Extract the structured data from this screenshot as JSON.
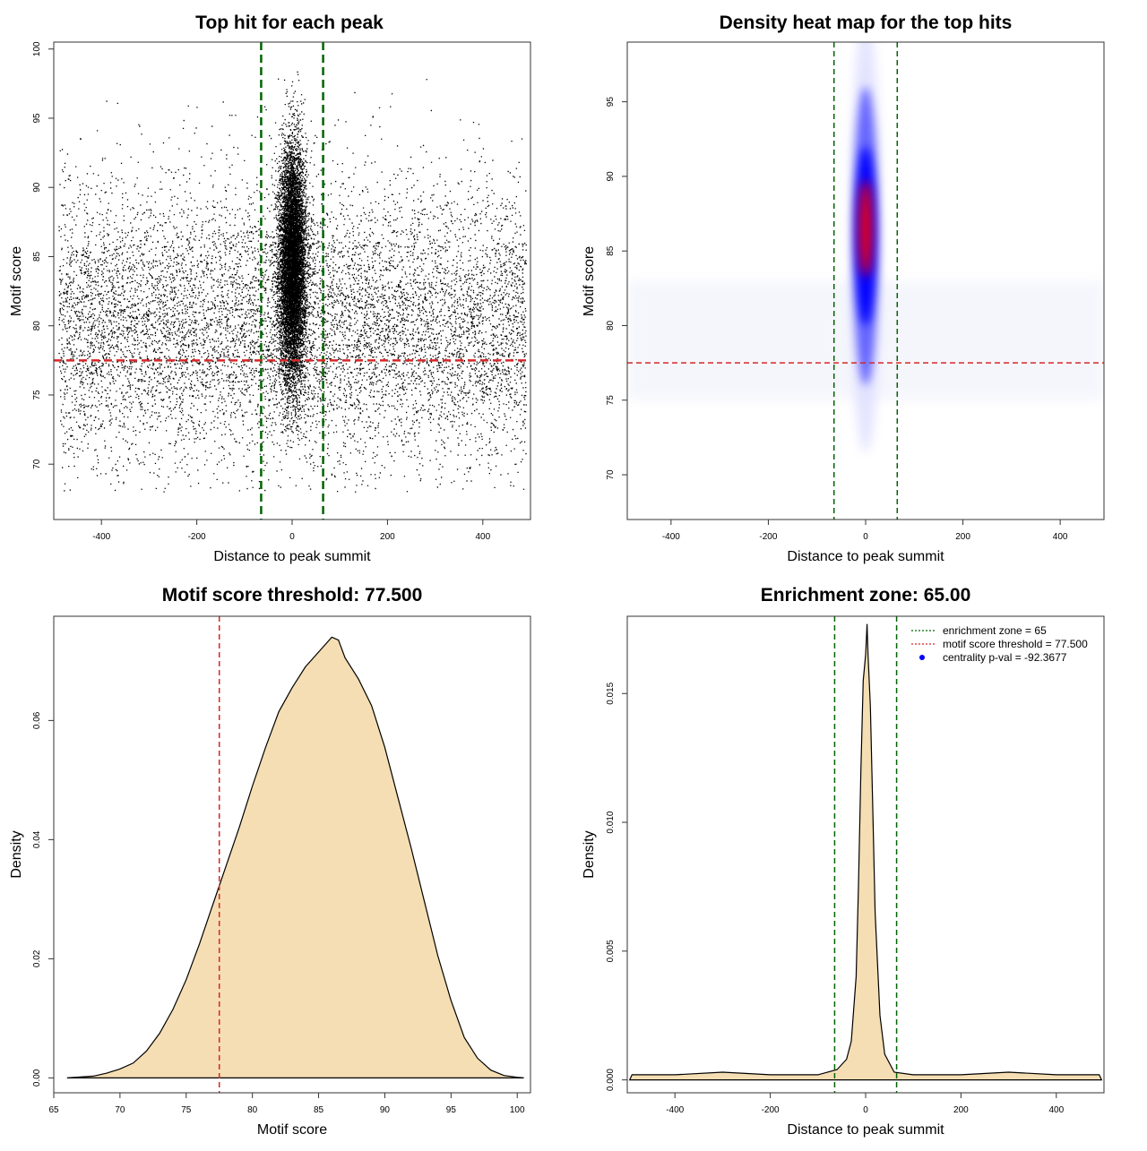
{
  "chart_data": [
    {
      "id": "scatter",
      "type": "scatter",
      "title": "Top hit for each peak",
      "xlabel": "Distance to peak summit",
      "ylabel": "Motif score",
      "xlim": [
        -500,
        500
      ],
      "ylim": [
        66,
        100.5
      ],
      "xticks": [
        -400,
        -200,
        0,
        200,
        400
      ],
      "yticks": [
        70,
        75,
        80,
        85,
        90,
        95,
        100
      ],
      "vlines": [
        -65,
        65
      ],
      "hline": 77.5,
      "point_color": "#000000",
      "vline_color": "#006400",
      "hline_color": "#d62728",
      "central_cluster": {
        "x_center": 0,
        "x_spread": 14,
        "y_center": 84.5,
        "y_min": 71,
        "y_max": 98.5
      },
      "background": {
        "x_range": [
          -490,
          490
        ],
        "y_center": 80,
        "y_min": 68,
        "y_max": 98
      }
    },
    {
      "id": "heatmap",
      "type": "heatmap",
      "title": "Density heat map for the top hits",
      "xlabel": "Distance to peak summit",
      "ylabel": "Motif score",
      "xlim": [
        -490,
        490
      ],
      "ylim": [
        67,
        99
      ],
      "xticks": [
        -400,
        -200,
        0,
        200,
        400
      ],
      "yticks": [
        70,
        75,
        80,
        85,
        90,
        95
      ],
      "vlines": [
        -65,
        65
      ],
      "hline": 77.5,
      "hotspot": {
        "x": 0,
        "y": 86.5
      },
      "colors": {
        "low": "#ffffff",
        "mid": "#0000ff",
        "high": "#ff0000"
      },
      "vline_color": "#006400",
      "hline_color": "#d62728"
    },
    {
      "id": "score-density",
      "type": "area",
      "title": "Motif score threshold: 77.500",
      "xlabel": "Motif score",
      "ylabel": "Density",
      "xlim": [
        65,
        101
      ],
      "ylim": [
        -0.0025,
        0.0775
      ],
      "xticks": [
        65,
        70,
        75,
        80,
        85,
        90,
        95,
        100
      ],
      "yticks": [
        0.0,
        0.02,
        0.04,
        0.06
      ],
      "ytick_labels": [
        "0.00",
        "0.02",
        "0.04",
        "0.06"
      ],
      "vline": 77.5,
      "x": [
        66,
        68,
        69,
        70,
        71,
        72,
        73,
        74,
        75,
        76,
        77,
        78,
        79,
        80,
        81,
        82,
        83,
        84,
        85,
        86,
        86.5,
        87,
        88,
        89,
        90,
        91,
        92,
        93,
        94,
        95,
        96,
        97,
        98,
        99,
        100,
        100.5
      ],
      "y": [
        0.0,
        0.0003,
        0.0008,
        0.0015,
        0.0025,
        0.0045,
        0.0075,
        0.0115,
        0.0165,
        0.0225,
        0.029,
        0.0355,
        0.042,
        0.049,
        0.0555,
        0.0615,
        0.0655,
        0.069,
        0.0715,
        0.074,
        0.0735,
        0.0705,
        0.067,
        0.0625,
        0.0555,
        0.047,
        0.0385,
        0.0295,
        0.0205,
        0.013,
        0.0068,
        0.0033,
        0.0013,
        0.0004,
        0.0001,
        0.0
      ],
      "fill": "#f5deb3",
      "vline_color": "#d62728"
    },
    {
      "id": "distance-density",
      "type": "area",
      "title": "Enrichment zone: 65.00",
      "xlabel": "Distance to peak summit",
      "ylabel": "Density",
      "xlim": [
        -500,
        500
      ],
      "ylim": [
        -0.0005,
        0.018
      ],
      "xticks": [
        -400,
        -200,
        0,
        200,
        400
      ],
      "yticks": [
        0.0,
        0.005,
        0.01,
        0.015
      ],
      "ytick_labels": [
        "0.000",
        "0.005",
        "0.010",
        "0.015"
      ],
      "vlines": [
        -65,
        65
      ],
      "x": [
        -495,
        -490,
        -400,
        -300,
        -200,
        -100,
        -60,
        -40,
        -30,
        -20,
        -15,
        -10,
        -5,
        0,
        3,
        5,
        10,
        15,
        20,
        30,
        40,
        60,
        100,
        200,
        300,
        400,
        490,
        495
      ],
      "y": [
        0.0,
        0.0002,
        0.0002,
        0.0003,
        0.0002,
        0.0002,
        0.0004,
        0.0008,
        0.0015,
        0.004,
        0.0075,
        0.012,
        0.0155,
        0.0165,
        0.0177,
        0.0165,
        0.0145,
        0.0105,
        0.0065,
        0.0025,
        0.001,
        0.0003,
        0.0002,
        0.0002,
        0.0003,
        0.0002,
        0.0002,
        0.0
      ],
      "fill": "#f5deb3",
      "vline_color": "#006400",
      "legend": {
        "position": "top-right",
        "entries": [
          {
            "label": "enrichment zone = 65",
            "color": "#006400",
            "style": "dotted-line"
          },
          {
            "label": "motif score threshold = 77.500",
            "color": "#d62728",
            "style": "dotted-line"
          },
          {
            "label": "centrality p-val = -92.3677",
            "color": "#0000ff",
            "style": "point"
          }
        ]
      }
    }
  ]
}
